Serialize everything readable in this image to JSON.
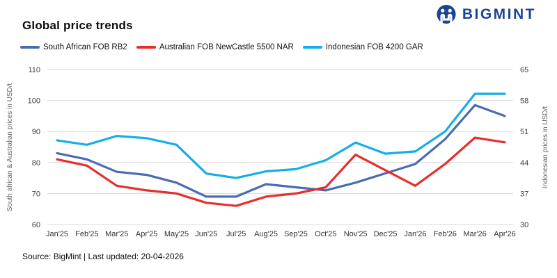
{
  "header": {
    "title": "Global price trends",
    "brand": "BIGMINT",
    "brand_color": "#1c4496"
  },
  "footer": {
    "source": "Source: BigMint | Last updated: 20-04-2026"
  },
  "chart_data": {
    "type": "line",
    "title": "Global price trends",
    "grid": "horizontal",
    "legend_position": "top-left",
    "categories": [
      "Jan'25",
      "Feb'25",
      "Mar'25",
      "Apr'25",
      "May'25",
      "Jun'25",
      "Jul'25",
      "Aug'25",
      "Sep'25",
      "Oct'25",
      "Nov'25",
      "Dec'25",
      "Jan'26",
      "Feb'26",
      "Mar'26",
      "Apr'26"
    ],
    "left_axis": {
      "label": "South african & Australian prices in USD/t",
      "min": 60,
      "max": 110,
      "ticks": [
        60,
        70,
        80,
        90,
        100,
        110
      ]
    },
    "right_axis": {
      "label": "Indonesian  prices in USD/t",
      "min": 30,
      "max": 65,
      "ticks": [
        30,
        37,
        44,
        51,
        58,
        65
      ]
    },
    "series": [
      {
        "name": "South African FOB RB2",
        "color": "#4a6bb3",
        "axis": "left",
        "values": [
          83,
          81,
          77,
          76,
          73.5,
          69,
          69,
          73,
          72,
          71,
          73.5,
          76.5,
          79.5,
          87.5,
          98.5,
          95
        ]
      },
      {
        "name": "Australian FOB NewCastle 5500 NAR",
        "color": "#e62e2e",
        "axis": "left",
        "values": [
          81,
          79,
          72.5,
          71,
          70,
          67,
          66,
          69,
          70,
          72,
          82.5,
          77.5,
          72.5,
          79.5,
          88,
          86.5
        ]
      },
      {
        "name": "Indonesian FOB 4200 GAR",
        "color": "#16ade9",
        "axis": "right",
        "values": [
          49,
          48,
          50,
          49.5,
          48,
          41.5,
          40.5,
          42,
          42.5,
          44.5,
          48.5,
          46,
          46.5,
          51,
          59.5,
          59.5
        ]
      }
    ],
    "colors": {
      "gridline": "#d9d9d9",
      "tick_label": "#404040",
      "axis_title": "#666666",
      "x_label": "#333333"
    }
  }
}
